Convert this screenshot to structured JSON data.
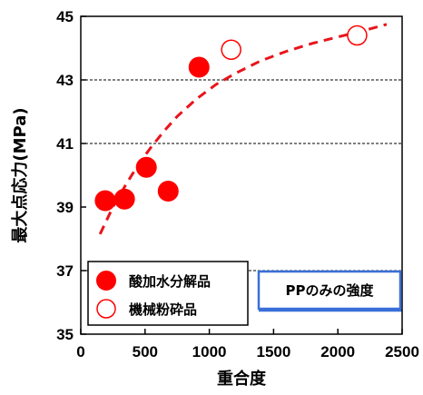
{
  "chart_data": {
    "type": "scatter",
    "xlabel": "重合度",
    "ylabel": "最大点応力(MPa)",
    "xlim": [
      0,
      2500
    ],
    "ylim": [
      35,
      45
    ],
    "x_ticks": [
      0,
      500,
      1000,
      1500,
      2000,
      2500
    ],
    "y_ticks": [
      35,
      37,
      39,
      41,
      43,
      45
    ],
    "grid": "horizontal dashed at 37, 41, 43",
    "series": [
      {
        "name": "酸加水分解品",
        "marker": "filled-circle",
        "color": "#ff0000",
        "points": [
          {
            "x": 190,
            "y": 39.2
          },
          {
            "x": 340,
            "y": 39.25
          },
          {
            "x": 510,
            "y": 40.25
          },
          {
            "x": 680,
            "y": 39.5
          },
          {
            "x": 920,
            "y": 43.4
          }
        ]
      },
      {
        "name": "機械粉砕品",
        "marker": "open-circle",
        "color": "#ff0000",
        "points": [
          {
            "x": 1170,
            "y": 43.95
          },
          {
            "x": 2150,
            "y": 44.4
          }
        ]
      }
    ],
    "trend": {
      "style": "dashed",
      "color": "#e8141b",
      "points": [
        {
          "x": 150,
          "y": 38.15
        },
        {
          "x": 250,
          "y": 39.0
        },
        {
          "x": 350,
          "y": 39.7
        },
        {
          "x": 450,
          "y": 40.35
        },
        {
          "x": 550,
          "y": 40.9
        },
        {
          "x": 650,
          "y": 41.4
        },
        {
          "x": 750,
          "y": 41.85
        },
        {
          "x": 900,
          "y": 42.4
        },
        {
          "x": 1050,
          "y": 42.85
        },
        {
          "x": 1200,
          "y": 43.2
        },
        {
          "x": 1400,
          "y": 43.6
        },
        {
          "x": 1600,
          "y": 43.9
        },
        {
          "x": 1800,
          "y": 44.15
        },
        {
          "x": 2000,
          "y": 44.35
        },
        {
          "x": 2200,
          "y": 44.55
        },
        {
          "x": 2380,
          "y": 44.75
        }
      ]
    },
    "reference_line": {
      "label": "PPのみの強度",
      "y": 35.75,
      "color": "#3a6fd8"
    },
    "legend": {
      "placement": "bottom-left",
      "entries": [
        "酸加水分解品",
        "機械粉砕品"
      ]
    }
  }
}
